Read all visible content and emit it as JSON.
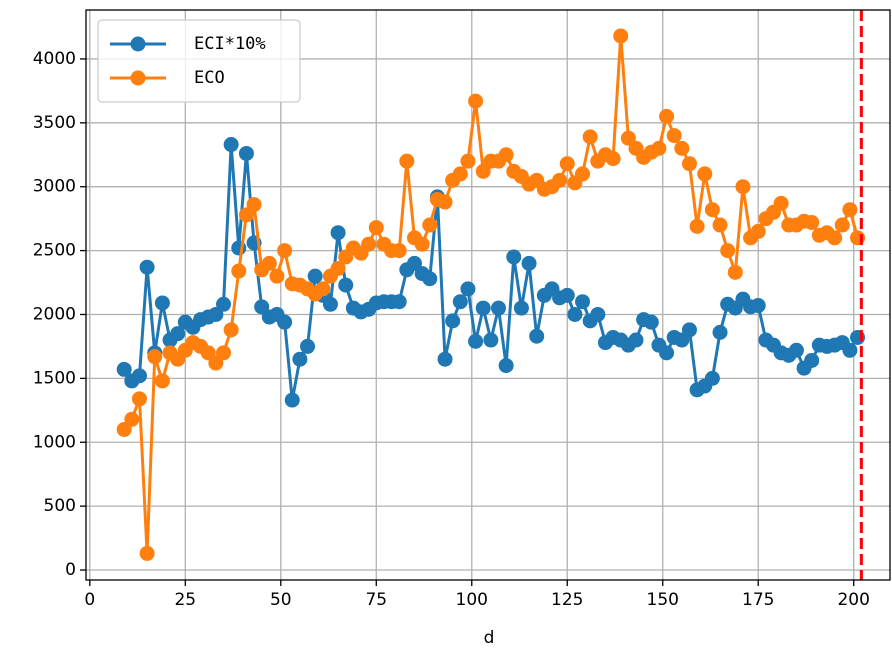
{
  "chart_data": {
    "type": "line",
    "xlabel": "d",
    "x": [
      9,
      11,
      13,
      15,
      17,
      19,
      21,
      23,
      25,
      27,
      29,
      31,
      33,
      35,
      37,
      39,
      41,
      43,
      45,
      47,
      49,
      51,
      53,
      55,
      57,
      59,
      61,
      63,
      65,
      67,
      69,
      71,
      73,
      75,
      77,
      79,
      81,
      83,
      85,
      87,
      89,
      91,
      93,
      95,
      97,
      99,
      101,
      103,
      105,
      107,
      109,
      111,
      113,
      115,
      117,
      119,
      121,
      123,
      125,
      127,
      129,
      131,
      133,
      135,
      137,
      139,
      141,
      143,
      145,
      147,
      149,
      151,
      153,
      155,
      157,
      159,
      161,
      163,
      165,
      167,
      169,
      171,
      173,
      175,
      177,
      179,
      181,
      183,
      185,
      187,
      189,
      191,
      193,
      195,
      197,
      199,
      201
    ],
    "series": [
      {
        "name": "ECI*10%",
        "color": "#1f77b4",
        "values": [
          1570,
          1480,
          1520,
          2370,
          1700,
          2090,
          1800,
          1850,
          1940,
          1900,
          1960,
          1980,
          2000,
          2080,
          3330,
          2520,
          3260,
          2560,
          2060,
          1980,
          2000,
          1940,
          1330,
          1650,
          1750,
          2300,
          2150,
          2080,
          2640,
          2230,
          2050,
          2020,
          2040,
          2090,
          2100,
          2100,
          2100,
          2350,
          2400,
          2320,
          2280,
          2920,
          1650,
          1950,
          2100,
          2200,
          1790,
          2050,
          1800,
          2050,
          1600,
          2450,
          2050,
          2400,
          1830,
          2150,
          2200,
          2130,
          2150,
          2000,
          2100,
          1950,
          2000,
          1780,
          1820,
          1800,
          1760,
          1800,
          1960,
          1940,
          1760,
          1700,
          1820,
          1800,
          1880,
          1410,
          1440,
          1500,
          1860,
          2080,
          2050,
          2120,
          2060,
          2070,
          1800,
          1760,
          1700,
          1680,
          1720,
          1580,
          1640,
          1760,
          1750,
          1760,
          1780,
          1720,
          1820
        ]
      },
      {
        "name": "ECO",
        "color": "#ff7f0e",
        "values": [
          1100,
          1180,
          1340,
          130,
          1670,
          1480,
          1700,
          1650,
          1720,
          1780,
          1750,
          1700,
          1620,
          1700,
          1880,
          2340,
          2780,
          2860,
          2350,
          2400,
          2300,
          2500,
          2240,
          2230,
          2200,
          2160,
          2200,
          2300,
          2360,
          2450,
          2520,
          2480,
          2550,
          2680,
          2550,
          2500,
          2500,
          3200,
          2600,
          2550,
          2700,
          2900,
          2880,
          3050,
          3100,
          3200,
          3670,
          3120,
          3200,
          3200,
          3250,
          3120,
          3080,
          3020,
          3050,
          2980,
          3000,
          3050,
          3180,
          3030,
          3100,
          3390,
          3200,
          3250,
          3220,
          4180,
          3380,
          3300,
          3230,
          3270,
          3300,
          3550,
          3400,
          3300,
          3180,
          2690,
          3100,
          2820,
          2700,
          2500,
          2330,
          3000,
          2600,
          2650,
          2750,
          2800,
          2870,
          2700,
          2700,
          2730,
          2720,
          2620,
          2640,
          2600,
          2700,
          2820,
          2600
        ]
      }
    ],
    "vline": 202,
    "vline_color": "#ff0000",
    "xlim": [
      -1,
      209.5
    ],
    "xticks": [
      0,
      25,
      50,
      75,
      100,
      125,
      150,
      175,
      200
    ],
    "ylim": [
      -78,
      4383
    ],
    "yticks": [
      0,
      500,
      1000,
      1500,
      2000,
      2500,
      3000,
      3500,
      4000
    ],
    "grid": true,
    "legend": "upper left"
  }
}
